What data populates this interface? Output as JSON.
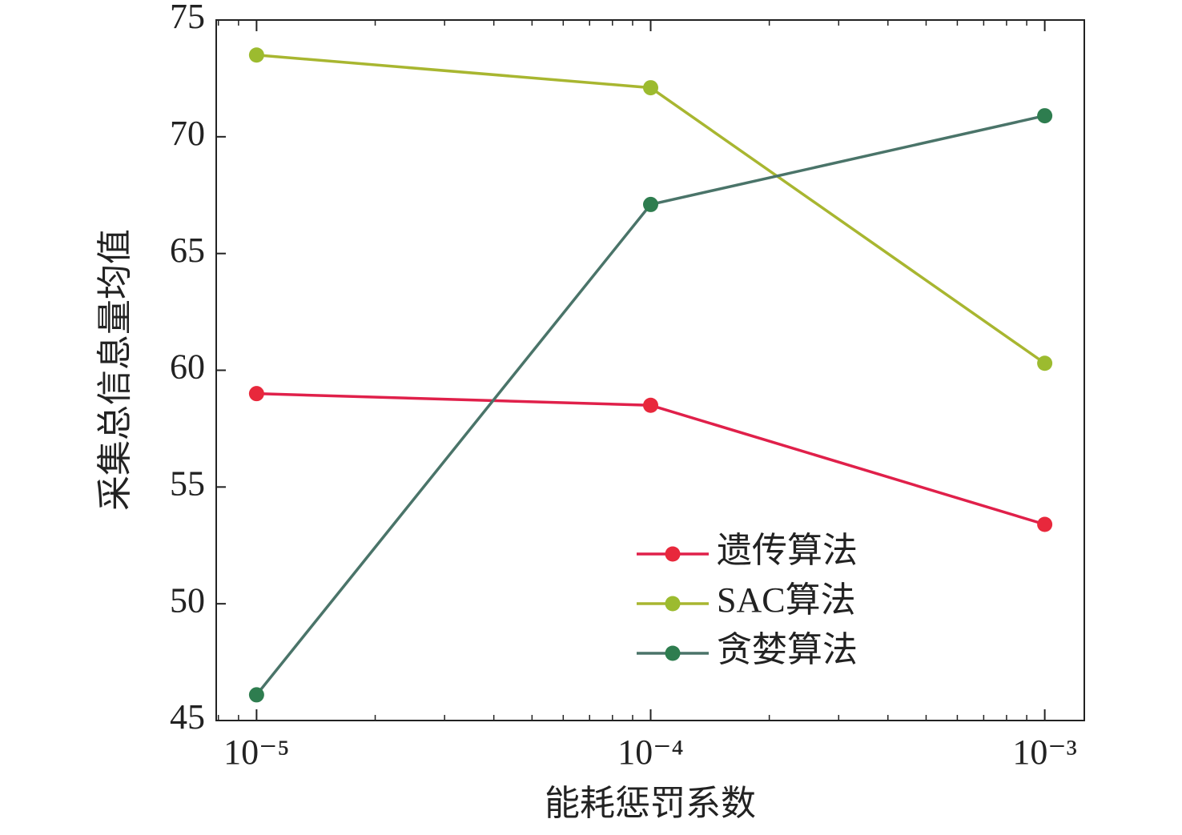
{
  "chart_data": {
    "type": "line",
    "x_label": "能耗惩罚系数",
    "y_label": "采集总信息量均值",
    "x": [
      1e-05,
      0.0001,
      0.001
    ],
    "xscale": "log",
    "xlim": [
      7.9e-06,
      0.00126
    ],
    "xticks": [
      {
        "value": 1e-05,
        "label": "10⁻⁵"
      },
      {
        "value": 0.0001,
        "label": "10⁻⁴"
      },
      {
        "value": 0.001,
        "label": "10⁻³"
      }
    ],
    "ylim": [
      45,
      75
    ],
    "yticks": [
      45,
      50,
      55,
      60,
      65,
      70,
      75
    ],
    "legend_loc": "lower right",
    "series": [
      {
        "name": "遗传算法",
        "color": "#e0204a",
        "marker_color": "#e8283c",
        "values": [
          59.0,
          58.5,
          53.4
        ]
      },
      {
        "name": "SAC算法",
        "color": "#a8b630",
        "marker_color": "#9cbb2f",
        "values": [
          73.5,
          72.1,
          60.3
        ]
      },
      {
        "name": "贪婪算法",
        "color": "#4a7469",
        "marker_color": "#2e7d4f",
        "values": [
          46.1,
          67.1,
          70.9
        ]
      }
    ]
  }
}
